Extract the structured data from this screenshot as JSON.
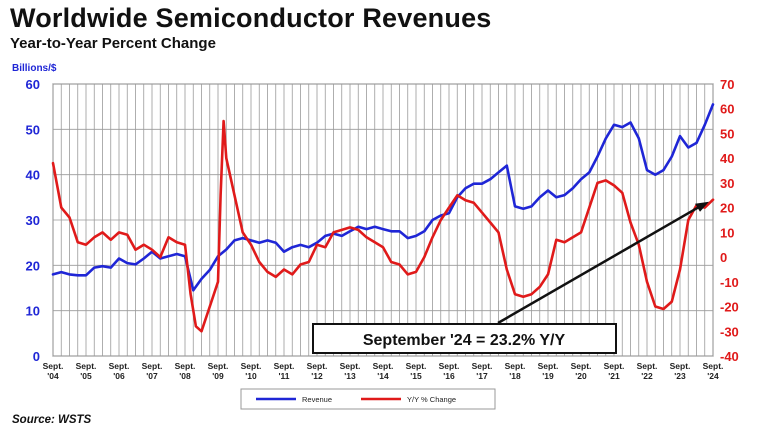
{
  "header": {
    "title": "Worldwide Semiconductor Revenues",
    "subtitle": "Year-to-Year Percent Change"
  },
  "footer": {
    "source": "Source: WSTS"
  },
  "colors": {
    "revenue": "#1f26d6",
    "yoy": "#e01a1a",
    "grid": "#9a9a9a",
    "left_axis": "#1f26d6",
    "right_axis": "#e01a1a"
  },
  "chart_data": {
    "type": "line",
    "title": "Worldwide Semiconductor Revenues",
    "subtitle": "Year-to-Year Percent Change",
    "ylabel": "Billions/$",
    "ylim": [
      0,
      60
    ],
    "y2lim": [
      -40,
      70
    ],
    "yticks": [
      0,
      10,
      20,
      30,
      40,
      50,
      60
    ],
    "y2ticks": [
      -40,
      -30,
      -20,
      -10,
      0,
      10,
      20,
      30,
      40,
      50,
      60,
      70
    ],
    "x_tick_labels": [
      [
        "Sept.",
        "'04"
      ],
      [
        "Sept.",
        "'05"
      ],
      [
        "Sept.",
        "'06"
      ],
      [
        "Sept.",
        "'07"
      ],
      [
        "Sept.",
        "'08"
      ],
      [
        "Sept.",
        "'09"
      ],
      [
        "Sept.",
        "'10"
      ],
      [
        "Sept.",
        "'11"
      ],
      [
        "Sept.",
        "'12"
      ],
      [
        "Sept.",
        "'13"
      ],
      [
        "Sept.",
        "'14"
      ],
      [
        "Sept.",
        "'15"
      ],
      [
        "Sept.",
        "'16"
      ],
      [
        "Sept.",
        "'17"
      ],
      [
        "Sept.",
        "'18"
      ],
      [
        "Sept.",
        "'19"
      ],
      [
        "Sept.",
        "'20"
      ],
      [
        "Sept.",
        "'21"
      ],
      [
        "Sept.",
        "'22"
      ],
      [
        "Sept.",
        "'23"
      ],
      [
        "Sept.",
        "'24"
      ]
    ],
    "x_range": [
      2004.75,
      2024.75
    ],
    "grid": true,
    "legend": "bottom-center",
    "annotation": {
      "text": "September '24 = 23.2% Y/Y",
      "points_to": {
        "x": 2024.75,
        "y2": 23.2
      }
    },
    "series": [
      {
        "name": "Revenue",
        "axis": "left",
        "x": [
          2004.75,
          2005.0,
          2005.25,
          2005.5,
          2005.75,
          2006.0,
          2006.25,
          2006.5,
          2006.75,
          2007.0,
          2007.25,
          2007.5,
          2007.75,
          2008.0,
          2008.25,
          2008.5,
          2008.75,
          2009.0,
          2009.25,
          2009.5,
          2009.75,
          2010.0,
          2010.25,
          2010.5,
          2010.75,
          2011.0,
          2011.25,
          2011.5,
          2011.75,
          2012.0,
          2012.25,
          2012.5,
          2012.75,
          2013.0,
          2013.25,
          2013.5,
          2013.75,
          2014.0,
          2014.25,
          2014.5,
          2014.75,
          2015.0,
          2015.25,
          2015.5,
          2015.75,
          2016.0,
          2016.25,
          2016.5,
          2016.75,
          2017.0,
          2017.25,
          2017.5,
          2017.75,
          2018.0,
          2018.25,
          2018.5,
          2018.75,
          2019.0,
          2019.25,
          2019.5,
          2019.75,
          2020.0,
          2020.25,
          2020.5,
          2020.75,
          2021.0,
          2021.25,
          2021.5,
          2021.75,
          2022.0,
          2022.25,
          2022.5,
          2022.75,
          2023.0,
          2023.25,
          2023.5,
          2023.75,
          2024.0,
          2024.25,
          2024.5,
          2024.75
        ],
        "values": [
          18,
          18.5,
          18,
          17.8,
          17.8,
          19.5,
          19.8,
          19.5,
          21.5,
          20.5,
          20.2,
          21.5,
          23,
          21.5,
          22,
          22.5,
          22,
          14.5,
          17,
          19,
          22,
          23.5,
          25.5,
          26,
          25.5,
          25,
          25.5,
          25,
          23,
          24,
          24.5,
          24,
          25,
          26.5,
          27,
          26.5,
          27.5,
          28.5,
          28,
          28.5,
          28,
          27.5,
          27.5,
          26,
          26.5,
          27.5,
          30,
          31,
          31.5,
          35,
          37,
          38,
          38,
          39,
          40.5,
          42,
          33,
          32.5,
          33,
          35,
          36.5,
          35,
          35.5,
          37,
          39,
          40.5,
          44,
          48,
          51,
          50.5,
          51.5,
          48,
          41,
          40,
          41,
          44,
          48.5,
          46,
          47,
          51,
          55.5
        ]
      },
      {
        "name": "Y/Y % Change",
        "axis": "right",
        "x": [
          2004.75,
          2005.0,
          2005.25,
          2005.5,
          2005.75,
          2006.0,
          2006.25,
          2006.5,
          2006.75,
          2007.0,
          2007.25,
          2007.5,
          2007.75,
          2008.0,
          2008.25,
          2008.5,
          2008.75,
          2008.92,
          2009.08,
          2009.25,
          2009.5,
          2009.75,
          2009.83,
          2009.92,
          2010.0,
          2010.25,
          2010.5,
          2010.75,
          2011.0,
          2011.25,
          2011.5,
          2011.75,
          2012.0,
          2012.25,
          2012.5,
          2012.75,
          2013.0,
          2013.25,
          2013.5,
          2013.75,
          2014.0,
          2014.25,
          2014.5,
          2014.75,
          2015.0,
          2015.25,
          2015.5,
          2015.75,
          2016.0,
          2016.25,
          2016.5,
          2016.75,
          2017.0,
          2017.25,
          2017.5,
          2017.75,
          2018.0,
          2018.25,
          2018.5,
          2018.75,
          2019.0,
          2019.25,
          2019.5,
          2019.75,
          2020.0,
          2020.25,
          2020.5,
          2020.75,
          2021.0,
          2021.25,
          2021.5,
          2021.75,
          2022.0,
          2022.25,
          2022.5,
          2022.75,
          2023.0,
          2023.25,
          2023.5,
          2023.75,
          2024.0,
          2024.25,
          2024.5,
          2024.75
        ],
        "values": [
          38,
          20,
          16,
          6,
          5,
          8,
          10,
          7,
          10,
          9,
          3,
          5,
          3,
          0,
          8,
          6,
          5,
          -15,
          -28,
          -30,
          -20,
          -10,
          25,
          55,
          40,
          25,
          10,
          5,
          -2,
          -6,
          -8,
          -5,
          -7,
          -3,
          -2,
          5,
          4,
          10,
          11,
          12,
          11,
          8,
          6,
          4,
          -2,
          -3,
          -7,
          -6,
          0,
          8,
          15,
          20,
          25,
          23,
          22,
          18,
          14,
          10,
          -5,
          -15,
          -16,
          -15,
          -12,
          -7,
          7,
          6,
          8,
          10,
          20,
          30,
          31,
          29,
          26,
          14,
          5,
          -10,
          -20,
          -21,
          -18,
          -5,
          15,
          21,
          20,
          23.2
        ]
      }
    ]
  }
}
